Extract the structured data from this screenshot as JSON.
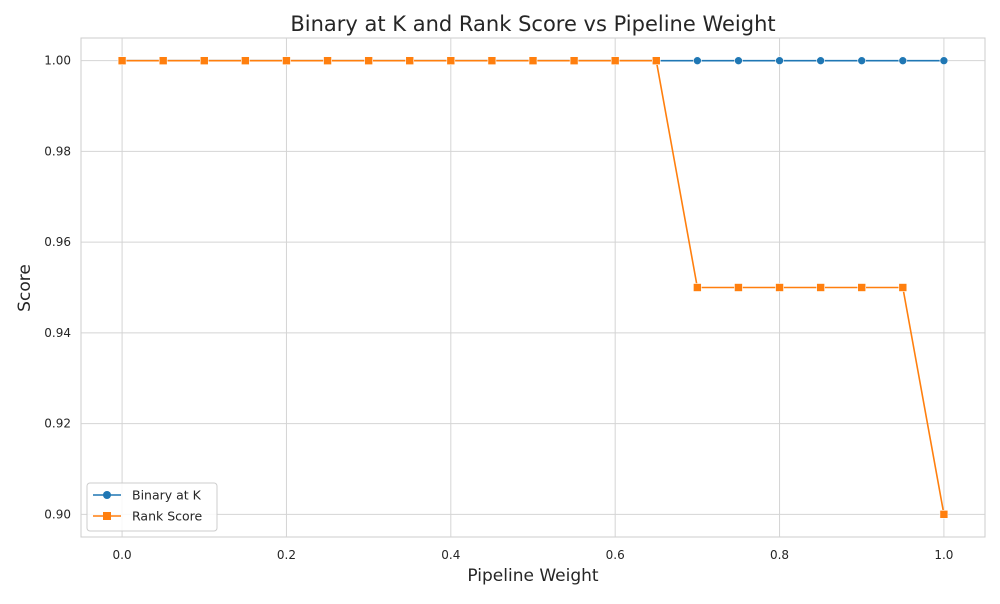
{
  "chart_data": {
    "type": "line",
    "title": "Binary at K and Rank Score vs Pipeline Weight",
    "xlabel": "Pipeline Weight",
    "ylabel": "Score",
    "x": [
      0.0,
      0.05,
      0.1,
      0.15,
      0.2,
      0.25,
      0.3,
      0.35,
      0.4,
      0.45,
      0.5,
      0.55,
      0.6,
      0.65,
      0.7,
      0.75,
      0.8,
      0.85,
      0.9,
      0.95,
      1.0
    ],
    "xlim": [
      -0.05,
      1.05
    ],
    "ylim": [
      0.895,
      1.005
    ],
    "xticks": [
      0.0,
      0.2,
      0.4,
      0.6,
      0.8,
      1.0
    ],
    "xtick_labels": [
      "0.0",
      "0.2",
      "0.4",
      "0.6",
      "0.8",
      "1.0"
    ],
    "yticks": [
      0.9,
      0.92,
      0.94,
      0.96,
      0.98,
      1.0
    ],
    "ytick_labels": [
      "0.90",
      "0.92",
      "0.94",
      "0.96",
      "0.98",
      "1.00"
    ],
    "grid": true,
    "legend_position": "lower-left",
    "series": [
      {
        "name": "Binary at K",
        "color": "#1f77b4",
        "marker": "circle",
        "values": [
          1.0,
          1.0,
          1.0,
          1.0,
          1.0,
          1.0,
          1.0,
          1.0,
          1.0,
          1.0,
          1.0,
          1.0,
          1.0,
          1.0,
          1.0,
          1.0,
          1.0,
          1.0,
          1.0,
          1.0,
          1.0
        ]
      },
      {
        "name": "Rank Score",
        "color": "#ff7f0e",
        "marker": "square",
        "values": [
          1.0,
          1.0,
          1.0,
          1.0,
          1.0,
          1.0,
          1.0,
          1.0,
          1.0,
          1.0,
          1.0,
          1.0,
          1.0,
          1.0,
          0.95,
          0.95,
          0.95,
          0.95,
          0.95,
          0.95,
          0.9
        ]
      }
    ]
  }
}
